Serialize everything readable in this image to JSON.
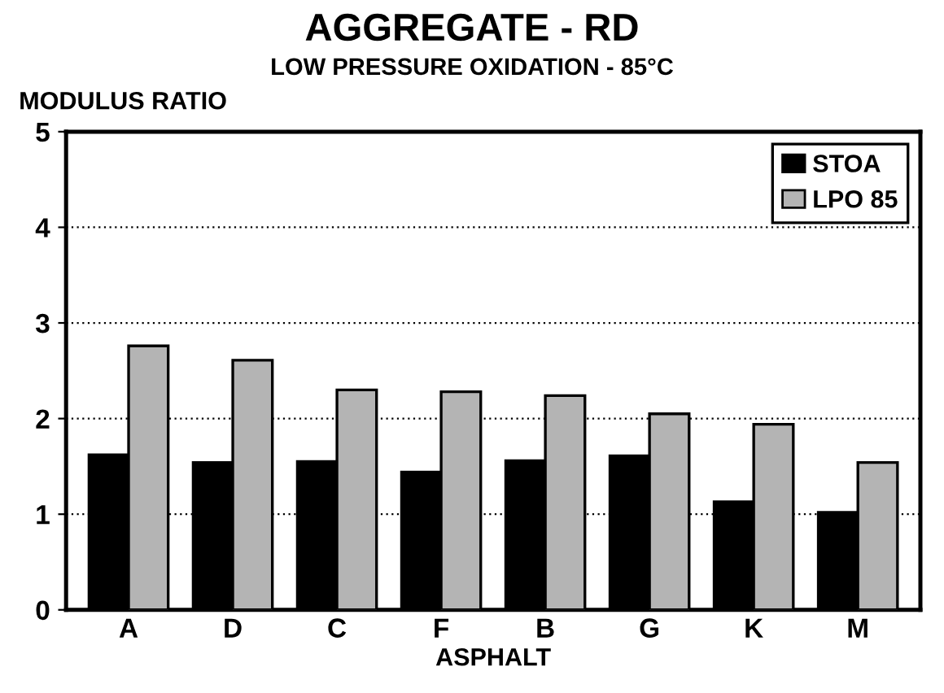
{
  "chart_data": {
    "type": "bar",
    "title": "AGGREGATE - RD",
    "subtitle": "LOW PRESSURE OXIDATION - 85°C",
    "xlabel": "ASPHALT",
    "ylabel": "MODULUS RATIO",
    "categories": [
      "A",
      "D",
      "C",
      "F",
      "B",
      "G",
      "K",
      "M"
    ],
    "series": [
      {
        "name": "STOA",
        "color": "#000000",
        "values": [
          1.62,
          1.54,
          1.55,
          1.44,
          1.56,
          1.61,
          1.13,
          1.02
        ]
      },
      {
        "name": "LPO 85",
        "color": "#b4b4b4",
        "values": [
          2.76,
          2.61,
          2.3,
          2.28,
          2.24,
          2.05,
          1.94,
          1.54
        ]
      }
    ],
    "ylim": [
      0,
      5
    ],
    "yticks": [
      0,
      1,
      2,
      3,
      4,
      5
    ],
    "grid": "y",
    "legend": "top right"
  }
}
